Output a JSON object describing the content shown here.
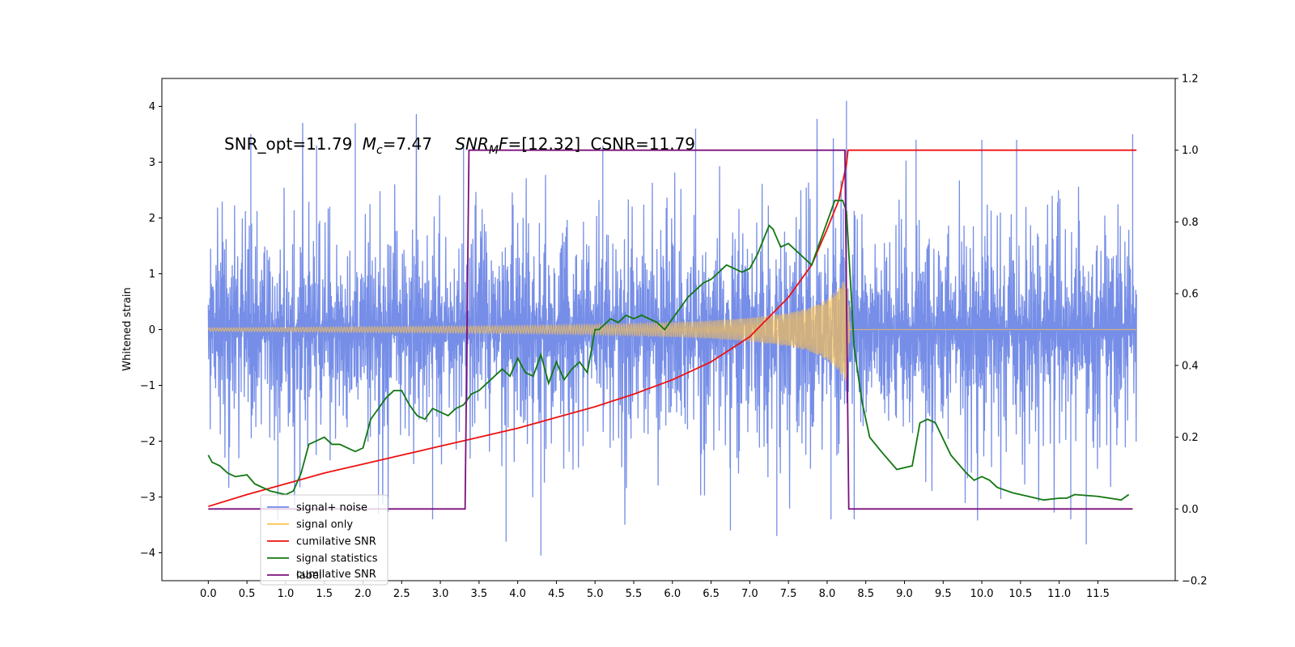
{
  "chart_data": {
    "type": "line",
    "annotation": {
      "snr_opt": "SNR_opt=11.79",
      "mc_sym": "M",
      "mc_sub": "c",
      "mc_val": "=7.47",
      "snrmf_sym": "SNR",
      "snrmf_sub": "M",
      "snrmf_f": "F",
      "snrmf_val": "=[12.32]",
      "csnr": "CSNR=11.79"
    },
    "ylabel_left": "Whitened strain",
    "xlim": [
      -0.6,
      12.5
    ],
    "ylim_left": [
      -4.5,
      4.5
    ],
    "ylim_right": [
      -0.2,
      1.2
    ],
    "xticks": [
      0.0,
      0.5,
      1.0,
      1.5,
      2.0,
      2.5,
      3.0,
      3.5,
      4.0,
      4.5,
      5.0,
      5.5,
      6.0,
      6.5,
      7.0,
      7.5,
      8.0,
      8.5,
      9.0,
      9.5,
      10.0,
      10.5,
      11.0,
      11.5
    ],
    "xtick_labels": [
      "0.0",
      "0.5",
      "1.0",
      "1.5",
      "2.0",
      "2.5",
      "3.0",
      "3.5",
      "4.0",
      "4.5",
      "5.0",
      "5.5",
      "6.0",
      "6.5",
      "7.0",
      "7.5",
      "8.0",
      "8.5",
      "9.0",
      "9.5",
      "10.0",
      "10.5",
      "11.0",
      "11.5"
    ],
    "yticks_left": [
      -4,
      -3,
      -2,
      -1,
      0,
      1,
      2,
      3,
      4
    ],
    "ytick_labels_left": [
      "−4",
      "−3",
      "−2",
      "−1",
      "0",
      "1",
      "2",
      "3",
      "4"
    ],
    "yticks_right": [
      -0.2,
      0.0,
      0.2,
      0.4,
      0.6,
      0.8,
      1.0,
      1.2
    ],
    "ytick_labels_right": [
      "−0.2",
      "0.0",
      "0.2",
      "0.4",
      "0.6",
      "0.8",
      "1.0",
      "1.2"
    ],
    "legend": {
      "position": "lower-left",
      "entries": [
        {
          "label": "signal+ noise",
          "color": "#6f88e6"
        },
        {
          "label": "signal only",
          "color": "#ffc34d"
        },
        {
          "label": "cumilative SNR",
          "color": "#ee1111"
        },
        {
          "label": "signal statistics",
          "color": "#117711"
        },
        {
          "label": "label",
          "color": "#7b107b"
        }
      ],
      "ghost_text": "cumilative SNR"
    },
    "series": [
      {
        "name": "signal+ noise",
        "axis": "left",
        "color": "#6f88e6",
        "x_range": [
          0.0,
          12.0
        ],
        "typical_abs_max": 2.2,
        "spikes": [
          {
            "x": 0.55,
            "y": 3.5
          },
          {
            "x": 0.9,
            "y": -3.4
          },
          {
            "x": 1.4,
            "y": 3.3
          },
          {
            "x": 1.9,
            "y": 3.7
          },
          {
            "x": 2.2,
            "y": -3.3
          },
          {
            "x": 2.9,
            "y": -3.4
          },
          {
            "x": 3.3,
            "y": 3.3
          },
          {
            "x": 3.85,
            "y": -3.8
          },
          {
            "x": 4.3,
            "y": -4.05
          },
          {
            "x": 5.1,
            "y": 3.3
          },
          {
            "x": 6.3,
            "y": 3.6
          },
          {
            "x": 6.75,
            "y": -3.6
          },
          {
            "x": 7.35,
            "y": -3.7
          },
          {
            "x": 8.25,
            "y": 4.1
          },
          {
            "x": 8.05,
            "y": -3.4
          },
          {
            "x": 8.35,
            "y": -3.4
          },
          {
            "x": 9.15,
            "y": 3.4
          },
          {
            "x": 10.0,
            "y": 3.4
          },
          {
            "x": 10.45,
            "y": 3.4
          },
          {
            "x": 11.15,
            "y": -3.4
          },
          {
            "x": 11.35,
            "y": -3.85
          },
          {
            "x": 11.95,
            "y": 3.5
          }
        ]
      },
      {
        "name": "signal only",
        "axis": "left",
        "color": "#ffc34d",
        "envelope_x": [
          0.0,
          1.0,
          2.0,
          3.0,
          4.0,
          5.0,
          6.0,
          6.5,
          7.0,
          7.5,
          7.8,
          8.0,
          8.15,
          8.25,
          8.3,
          12.0
        ],
        "envelope_amp": [
          0.03,
          0.04,
          0.05,
          0.06,
          0.07,
          0.09,
          0.13,
          0.16,
          0.21,
          0.3,
          0.4,
          0.55,
          0.75,
          0.95,
          0.0,
          0.0
        ]
      },
      {
        "name": "cumilative SNR",
        "axis": "right",
        "color": "#ee1111",
        "x": [
          0.0,
          0.5,
          1.0,
          1.5,
          2.0,
          2.5,
          3.0,
          3.5,
          4.0,
          4.5,
          5.0,
          5.5,
          6.0,
          6.5,
          7.0,
          7.5,
          7.8,
          8.0,
          8.15,
          8.25,
          8.27,
          12.0
        ],
        "values": [
          0.007,
          0.04,
          0.07,
          0.1,
          0.125,
          0.15,
          0.175,
          0.2,
          0.225,
          0.255,
          0.285,
          0.32,
          0.36,
          0.41,
          0.48,
          0.59,
          0.68,
          0.78,
          0.86,
          0.96,
          1.0,
          1.0
        ]
      },
      {
        "name": "signal statistics",
        "axis": "right",
        "color": "#117711",
        "x": [
          0.0,
          0.05,
          0.15,
          0.25,
          0.35,
          0.5,
          0.6,
          0.8,
          1.0,
          1.1,
          1.2,
          1.3,
          1.4,
          1.5,
          1.6,
          1.7,
          1.9,
          2.0,
          2.1,
          2.2,
          2.3,
          2.4,
          2.5,
          2.6,
          2.7,
          2.8,
          2.9,
          3.0,
          3.1,
          3.2,
          3.3,
          3.4,
          3.5,
          3.6,
          3.8,
          3.9,
          4.0,
          4.1,
          4.2,
          4.3,
          4.4,
          4.5,
          4.6,
          4.7,
          4.8,
          4.9,
          5.0,
          5.05,
          5.2,
          5.3,
          5.4,
          5.5,
          5.6,
          5.8,
          5.9,
          6.0,
          6.1,
          6.2,
          6.3,
          6.4,
          6.5,
          6.6,
          6.7,
          6.8,
          6.9,
          7.0,
          7.1,
          7.25,
          7.3,
          7.4,
          7.5,
          7.6,
          7.8,
          7.9,
          8.0,
          8.1,
          8.2,
          8.25,
          8.35,
          8.45,
          8.55,
          8.7,
          8.9,
          9.1,
          9.2,
          9.3,
          9.4,
          9.6,
          9.8,
          9.9,
          10.0,
          10.1,
          10.2,
          10.4,
          10.6,
          10.8,
          11.0,
          11.1,
          11.2,
          11.5,
          11.8,
          11.9
        ],
        "values": [
          0.15,
          0.13,
          0.12,
          0.1,
          0.09,
          0.095,
          0.07,
          0.05,
          0.04,
          0.05,
          0.1,
          0.18,
          0.19,
          0.2,
          0.18,
          0.18,
          0.16,
          0.17,
          0.25,
          0.28,
          0.31,
          0.33,
          0.33,
          0.29,
          0.26,
          0.25,
          0.28,
          0.27,
          0.26,
          0.28,
          0.29,
          0.32,
          0.33,
          0.35,
          0.39,
          0.37,
          0.42,
          0.38,
          0.37,
          0.43,
          0.35,
          0.41,
          0.36,
          0.39,
          0.41,
          0.38,
          0.5,
          0.5,
          0.53,
          0.52,
          0.54,
          0.53,
          0.54,
          0.52,
          0.5,
          0.53,
          0.56,
          0.59,
          0.61,
          0.63,
          0.64,
          0.66,
          0.68,
          0.67,
          0.66,
          0.67,
          0.71,
          0.79,
          0.78,
          0.73,
          0.74,
          0.72,
          0.68,
          0.74,
          0.8,
          0.86,
          0.86,
          0.83,
          0.45,
          0.3,
          0.2,
          0.16,
          0.11,
          0.12,
          0.24,
          0.25,
          0.24,
          0.15,
          0.1,
          0.08,
          0.09,
          0.08,
          0.06,
          0.045,
          0.035,
          0.025,
          0.03,
          0.03,
          0.04,
          0.035,
          0.025,
          0.04
        ]
      },
      {
        "name": "label",
        "axis": "right",
        "color": "#7b107b",
        "x": [
          0.0,
          3.32,
          3.37,
          8.23,
          8.28,
          11.95
        ],
        "values": [
          0.0,
          0.0,
          1.0,
          1.0,
          0.0,
          0.0
        ]
      }
    ]
  }
}
